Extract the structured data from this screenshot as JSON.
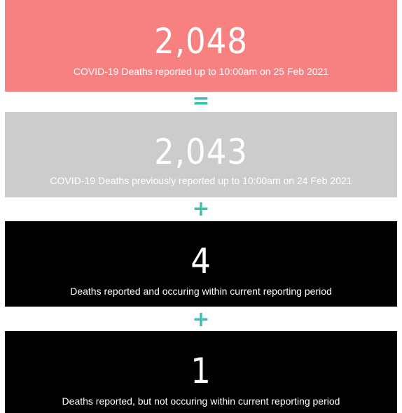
{
  "cards": [
    {
      "value": "2,048",
      "caption": "COVID-19 Deaths reported up to 10:00am on 25 Feb 2021"
    },
    {
      "value": "2,043",
      "caption": "COVID-19 Deaths previously reported up to 10:00am on 24 Feb 2021"
    },
    {
      "value": "4",
      "caption": "Deaths reported and occuring within current reporting period"
    },
    {
      "value": "1",
      "caption": "Deaths reported, but not occuring within current reporting period"
    }
  ],
  "operators": [
    "=",
    "+",
    "+"
  ]
}
